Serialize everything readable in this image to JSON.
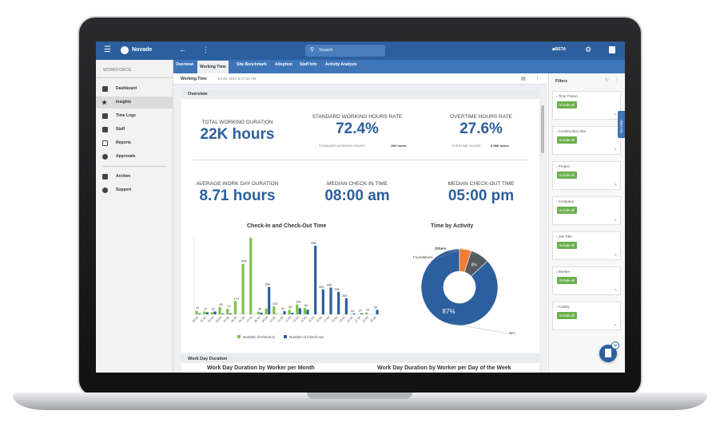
{
  "topbar": {
    "brand": "Novade",
    "search_placeholder": "Search",
    "beta": "BETA"
  },
  "tabs": [
    "Overview",
    "Working Time",
    "Site Benchmark",
    "Adoption",
    "Staff Info",
    "Activity Analysis"
  ],
  "active_tab": "Working Time",
  "sidebar": {
    "section": "WORKFORCE",
    "items": [
      {
        "label": "Dashboard",
        "icon": "dashboard-icon"
      },
      {
        "label": "Insights",
        "icon": "star-icon"
      },
      {
        "label": "Time Logs",
        "icon": "timelog-icon"
      },
      {
        "label": "Staff",
        "icon": "staff-icon"
      },
      {
        "label": "Reports",
        "icon": "report-icon"
      },
      {
        "label": "Approvals",
        "icon": "check-circle-icon"
      },
      {
        "label": "Archive",
        "icon": "archive-icon"
      },
      {
        "label": "Support",
        "icon": "help-icon"
      }
    ]
  },
  "breadcrumb": {
    "title": "Working Time",
    "timestamp": "Jul 28, 2021 9:27:43 AM"
  },
  "overview": {
    "header": "Overview",
    "kpis": [
      {
        "label": "TOTAL WORKING DURATION",
        "value": "22K hours"
      },
      {
        "label": "STANDARD WORKING HOURS RATE",
        "value": "72.4%",
        "sub_label": "STANDARD WORKING HOURS",
        "sub_value": "16K hours"
      },
      {
        "label": "OVERTIME HOURS RATE",
        "value": "27.6%",
        "sub_label": "OVERTIME HOURS",
        "sub_value": "6.08K hours"
      },
      {
        "label": "AVERAGE WORK DAY DURATION",
        "value": "8.71 hours"
      },
      {
        "label": "MEDIAN CHECK-IN TIME",
        "value": "08:00 am"
      },
      {
        "label": "MEDIAN CHECK-OUT TIME",
        "value": "05:00 pm"
      }
    ]
  },
  "filters": {
    "title": "Filters",
    "help_tab": "Get Help",
    "include_label": "Include all",
    "items": [
      "Time Frame",
      "Construction Site",
      "Project",
      "Company",
      "Job Title",
      "Worker",
      "Activity"
    ]
  },
  "section2": {
    "header": "Work Day Duration",
    "left_title": "Work Day Duration by Worker per Month",
    "right_title": "Work Day Duration by Worker per Day of the Week"
  },
  "fab_badge": "30",
  "colors": {
    "primary": "#2c5f9e",
    "checkin": "#7fc24a",
    "checkout": "#2c5f9e",
    "others": "#555a60",
    "foundations": "#f47b30"
  },
  "chart_data": [
    {
      "type": "bar",
      "title": "Check-In and Check-Out Time",
      "categories": [
        "00:00",
        "01:00",
        "02:00",
        "03:00",
        "04:00",
        "05:00",
        "06:00",
        "07:00",
        "08:00",
        "09:00",
        "10:00",
        "11:00",
        "12:00",
        "13:00",
        "14:00",
        "15:00",
        "16:00",
        "17:00",
        "18:00",
        "19:00",
        "20:00",
        "21:00",
        "22:00",
        "23:00"
      ],
      "series": [
        {
          "name": "Number of Check-in",
          "values": [
            47,
            37,
            28,
            96,
            73,
            174,
            659,
            1000,
            34,
            76,
            103,
            4,
            60,
            128,
            84,
            0,
            0,
            0,
            0,
            0,
            4,
            0,
            24,
            0
          ]
        },
        {
          "name": "Number of Check-out",
          "values": [
            10,
            27,
            37,
            10,
            12,
            0,
            0,
            0,
            22,
            358,
            4,
            42,
            20,
            80,
            60,
            896,
            325,
            349,
            294,
            209,
            10,
            14,
            0,
            59
          ]
        }
      ],
      "data_labels": [
        "47",
        "27",
        "37",
        "28",
        "96",
        "73",
        "174",
        "659",
        "22",
        "34",
        "358",
        "76",
        "103",
        "4.2",
        "60",
        "128",
        "84",
        "896",
        "325",
        "349",
        "294",
        "209",
        "24",
        "33",
        "59"
      ],
      "legend": "bottom"
    },
    {
      "type": "pie",
      "title": "Time by Activity",
      "slices": [
        {
          "name": "N/A",
          "value": 87,
          "label": "87%"
        },
        {
          "name": "Foundations",
          "value": 5,
          "label": ""
        },
        {
          "name": "Others",
          "value": 8,
          "label": "8%"
        }
      ]
    }
  ]
}
